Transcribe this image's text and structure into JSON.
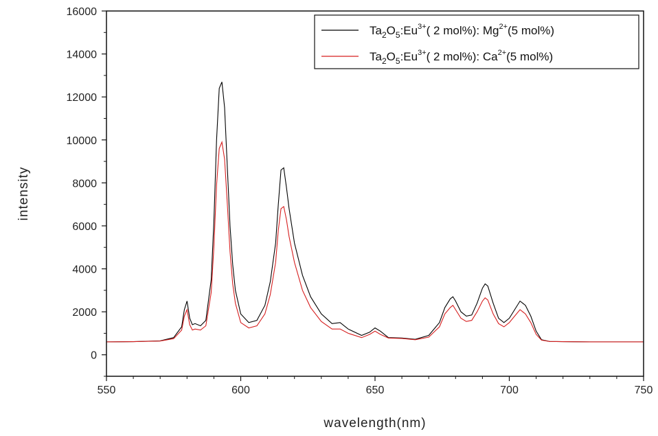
{
  "chart_data": {
    "type": "line",
    "xlabel": "wavelength(nm)",
    "ylabel": "intensity",
    "xlim": [
      550,
      750
    ],
    "ylim": [
      -1000,
      16000
    ],
    "x_ticks": [
      550,
      600,
      650,
      700,
      750
    ],
    "y_ticks": [
      0,
      2000,
      4000,
      6000,
      8000,
      10000,
      12000,
      14000,
      16000
    ],
    "grid": false,
    "legend_position": "top-right",
    "series": [
      {
        "name_parts": {
          "a": "Ta",
          "a_sub": "2",
          "b": "O",
          "b_sub": "5",
          "c": ":Eu",
          "c_sup": "3+",
          "d": "( 2 mol%): Mg",
          "d_sup": "2+",
          "e": "(5 mol%)"
        },
        "color": "#000000",
        "x": [
          550,
          560,
          570,
          575,
          578,
          579,
          580,
          581,
          582,
          583,
          585,
          587,
          589,
          590,
          591,
          592,
          593,
          594,
          595,
          596,
          597,
          598,
          600,
          603,
          606,
          609,
          611,
          613,
          614,
          615,
          616,
          617,
          618,
          620,
          623,
          626,
          630,
          634,
          637,
          640,
          645,
          648,
          650,
          652,
          655,
          660,
          665,
          670,
          674,
          676,
          678,
          679,
          680,
          682,
          684,
          686,
          688,
          690,
          691,
          692,
          694,
          696,
          698,
          700,
          702,
          704,
          706,
          708,
          710,
          712,
          715,
          720,
          730,
          740,
          750
        ],
        "values": [
          600,
          610,
          650,
          800,
          1300,
          2100,
          2500,
          1700,
          1400,
          1450,
          1350,
          1600,
          3500,
          6200,
          10000,
          12400,
          12700,
          11500,
          8700,
          6000,
          4200,
          3000,
          1900,
          1500,
          1600,
          2300,
          3400,
          5200,
          7000,
          8600,
          8700,
          7800,
          6800,
          5200,
          3700,
          2700,
          1900,
          1450,
          1500,
          1200,
          900,
          1050,
          1250,
          1100,
          800,
          780,
          720,
          900,
          1500,
          2200,
          2600,
          2700,
          2500,
          2000,
          1800,
          1850,
          2400,
          3100,
          3300,
          3200,
          2400,
          1700,
          1500,
          1700,
          2100,
          2500,
          2300,
          1800,
          1100,
          700,
          620,
          610,
          600,
          600,
          600
        ]
      },
      {
        "name_parts": {
          "a": "Ta",
          "a_sub": "2",
          "b": "O",
          "b_sub": "5",
          "c": ":Eu",
          "c_sup": "3+",
          "d": "( 2 mol%): Ca",
          "d_sup": "2+",
          "e": "(5 mol%)"
        },
        "color": "#d61e1e",
        "x": [
          550,
          560,
          570,
          575,
          578,
          579,
          580,
          581,
          582,
          583,
          585,
          587,
          589,
          590,
          591,
          592,
          593,
          594,
          595,
          596,
          597,
          598,
          600,
          603,
          606,
          609,
          611,
          613,
          614,
          615,
          616,
          617,
          618,
          620,
          623,
          626,
          630,
          634,
          637,
          640,
          645,
          648,
          650,
          652,
          655,
          660,
          665,
          670,
          674,
          676,
          678,
          679,
          680,
          682,
          684,
          686,
          688,
          690,
          691,
          692,
          694,
          696,
          698,
          700,
          702,
          704,
          706,
          708,
          710,
          712,
          715,
          720,
          730,
          740,
          750
        ],
        "values": [
          600,
          610,
          640,
          750,
          1150,
          1800,
          2100,
          1400,
          1150,
          1200,
          1150,
          1350,
          2900,
          5000,
          7900,
          9600,
          9900,
          9100,
          7000,
          4800,
          3300,
          2400,
          1500,
          1250,
          1350,
          1900,
          2800,
          4300,
          5800,
          6800,
          6900,
          6300,
          5500,
          4300,
          3000,
          2200,
          1550,
          1200,
          1200,
          1000,
          800,
          950,
          1100,
          950,
          780,
          760,
          700,
          820,
          1300,
          1900,
          2200,
          2300,
          2100,
          1700,
          1550,
          1600,
          2000,
          2500,
          2650,
          2550,
          1900,
          1450,
          1300,
          1500,
          1800,
          2100,
          1900,
          1500,
          950,
          680,
          620,
          610,
          600,
          600,
          600
        ]
      }
    ]
  }
}
